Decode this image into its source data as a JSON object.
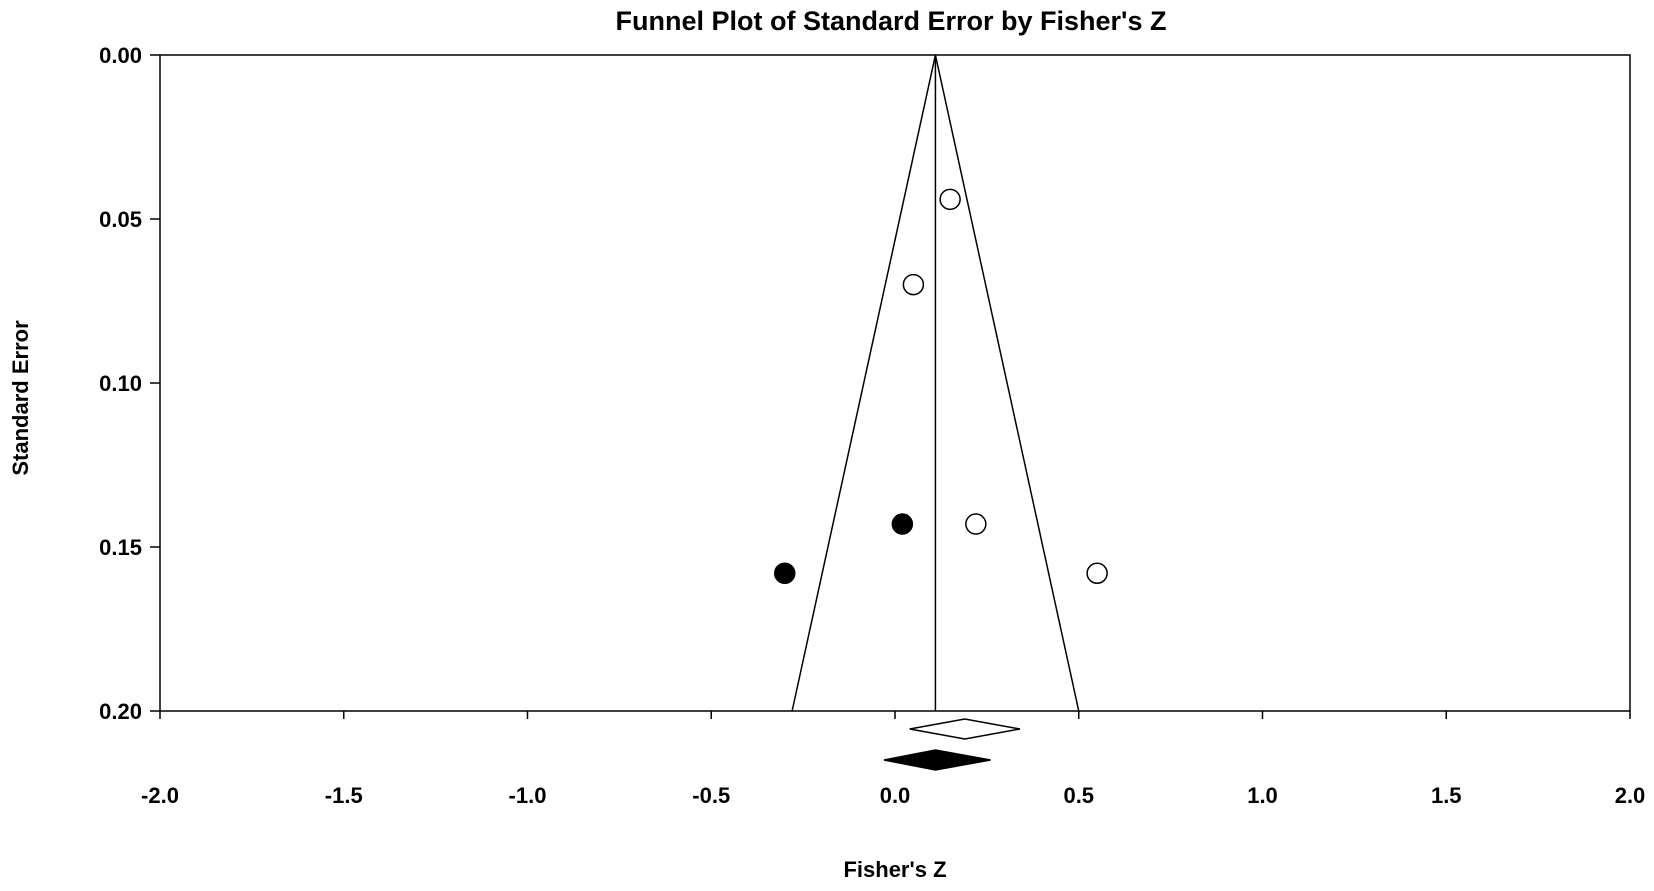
{
  "chart_data": {
    "type": "scatter",
    "title": "Funnel Plot of Standard Error by Fisher's Z",
    "xlabel": "Fisher's Z",
    "ylabel": "Standard Error",
    "xlim": [
      -2.0,
      2.0
    ],
    "ylim": [
      0.0,
      0.2
    ],
    "y_inverted": true,
    "xticks": [
      "-2.0",
      "-1.5",
      "-1.0",
      "-0.5",
      "0.0",
      "0.5",
      "1.0",
      "1.5",
      "2.0"
    ],
    "yticks": [
      "0.00",
      "0.05",
      "0.10",
      "0.15",
      "0.20"
    ],
    "grid": false,
    "legend": "none",
    "funnel": {
      "center": 0.11,
      "apex_se": 0.0,
      "base_se": 0.2,
      "base_left": -0.28,
      "base_right": 0.5
    },
    "series": [
      {
        "style": "open",
        "points": [
          {
            "x": 0.15,
            "y": 0.044
          },
          {
            "x": 0.05,
            "y": 0.07
          },
          {
            "x": 0.22,
            "y": 0.143
          },
          {
            "x": 0.55,
            "y": 0.158
          }
        ]
      },
      {
        "style": "filled",
        "points": [
          {
            "x": 0.02,
            "y": 0.143
          },
          {
            "x": -0.3,
            "y": 0.158
          }
        ]
      }
    ],
    "summary_diamonds": [
      {
        "style": "open",
        "center": 0.19,
        "lower": 0.04,
        "upper": 0.34
      },
      {
        "style": "filled",
        "center": 0.11,
        "lower": -0.03,
        "upper": 0.26
      }
    ],
    "colors": {
      "line": "#000000",
      "open_fill": "#ffffff",
      "filled_fill": "#000000"
    }
  }
}
